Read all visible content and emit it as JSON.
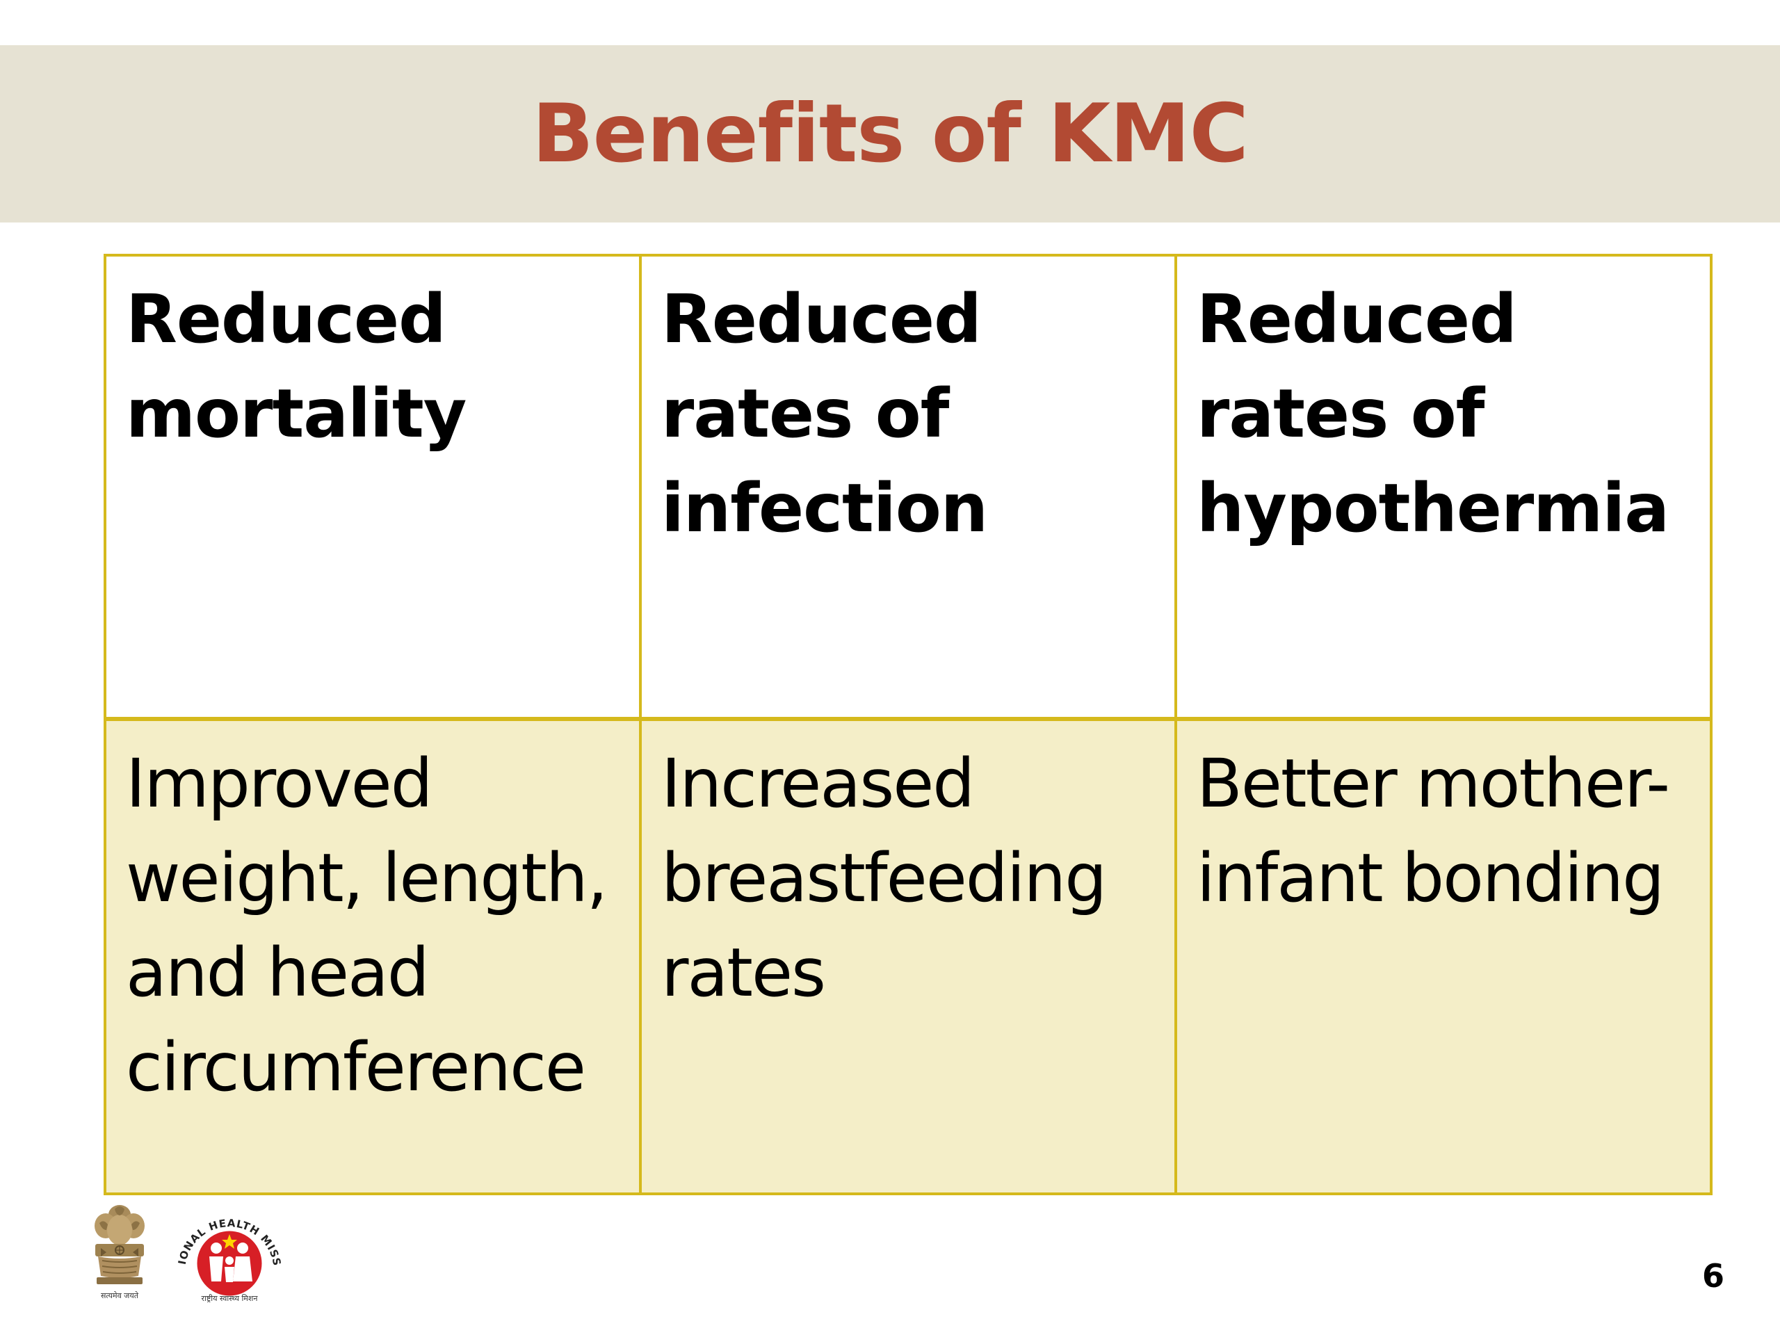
{
  "slide": {
    "title": "Benefits of KMC",
    "page_number": "6",
    "colors": {
      "title": "#b24a33",
      "title_band": "#e6e2d3",
      "table_border": "#d5b91c",
      "row_fill": "#f4eec8"
    }
  },
  "table": {
    "rows": [
      [
        "Reduced mortality",
        "Reduced rates of infection",
        "Reduced rates of hypothermia"
      ],
      [
        "Improved weight, length, and head circumference",
        "Increased breastfeeding rates",
        "Better mother-infant bonding"
      ]
    ]
  },
  "logos": {
    "emblem": {
      "icon": "national-emblem-icon",
      "motto": "सत्यमेव जयते"
    },
    "nhm": {
      "icon": "national-health-mission-logo-icon",
      "arc_text": "NATIONAL HEALTH MISSION",
      "bottom_text": "राष्ट्रीय स्वास्थ्य मिशन"
    }
  }
}
